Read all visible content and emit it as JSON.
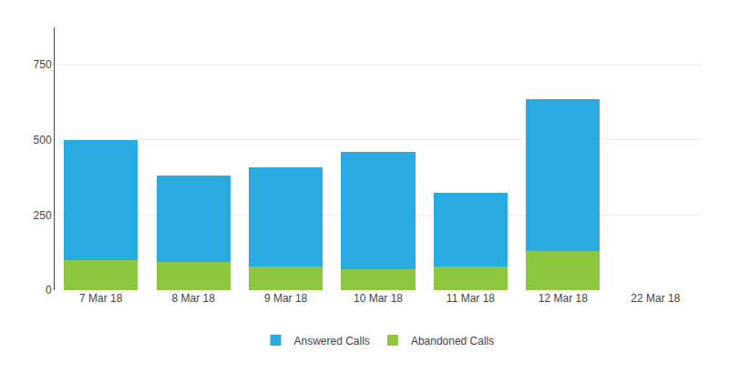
{
  "chart_data": {
    "type": "bar",
    "categories": [
      "7 Mar 18",
      "8 Mar 18",
      "9 Mar 18",
      "10 Mar 18",
      "11 Mar 18",
      "12 Mar 18",
      "22 Mar 18"
    ],
    "series": [
      {
        "name": "Abandoned Calls",
        "color": "#8DC63F",
        "values": [
          100,
          95,
          80,
          70,
          80,
          130,
          0
        ]
      },
      {
        "name": "Answered Calls",
        "color": "#29ABE2",
        "values": [
          400,
          285,
          330,
          390,
          245,
          505,
          0
        ]
      }
    ],
    "stacked": true,
    "ylim": [
      0,
      875
    ],
    "yticks": [
      0,
      250,
      500,
      750
    ],
    "grid": true,
    "legend": "bottom"
  }
}
